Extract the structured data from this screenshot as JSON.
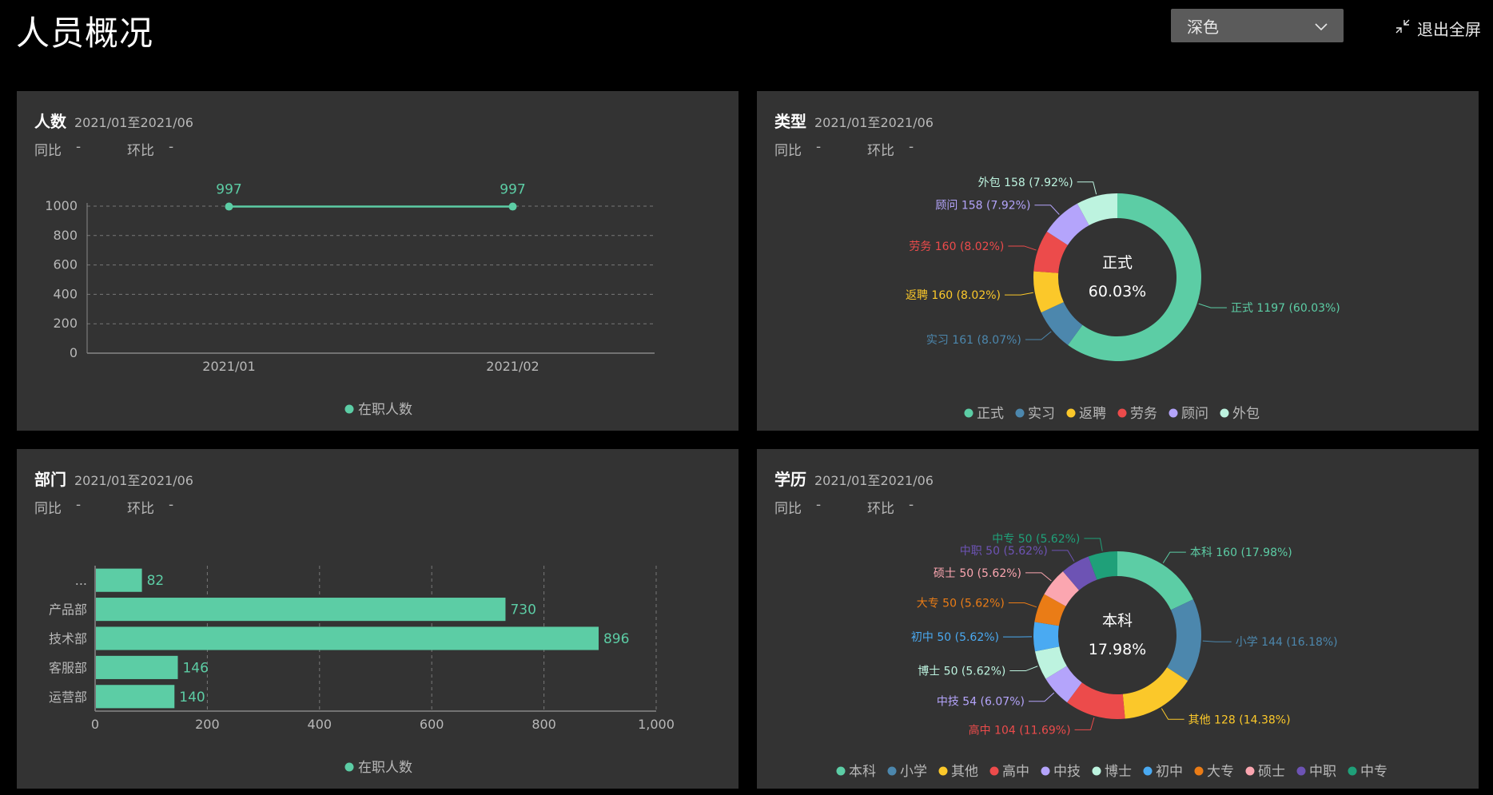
{
  "header": {
    "title": "人员概况",
    "theme_select": "深色",
    "exit_fullscreen": "退出全屏"
  },
  "colors": {
    "accent": "#5ccda5",
    "panel": "#333333",
    "text_muted": "#b8b8b8"
  },
  "panels": {
    "headcount": {
      "title": "人数",
      "date_range": "2021/01至2021/06",
      "yoy_label": "同比",
      "yoy_value": "-",
      "mom_label": "环比",
      "mom_value": "-",
      "legend": "在职人数"
    },
    "type": {
      "title": "类型",
      "date_range": "2021/01至2021/06",
      "yoy_label": "同比",
      "yoy_value": "-",
      "mom_label": "环比",
      "mom_value": "-",
      "center_label": "正式",
      "center_value": "60.03%"
    },
    "department": {
      "title": "部门",
      "date_range": "2021/01至2021/06",
      "yoy_label": "同比",
      "yoy_value": "-",
      "mom_label": "环比",
      "mom_value": "-",
      "legend": "在职人数"
    },
    "education": {
      "title": "学历",
      "date_range": "2021/01至2021/06",
      "yoy_label": "同比",
      "yoy_value": "-",
      "mom_label": "环比",
      "mom_value": "-",
      "center_label": "本科",
      "center_value": "17.98%"
    }
  },
  "chart_data": [
    {
      "type": "line",
      "x": [
        "2021/01",
        "2021/02"
      ],
      "series": [
        {
          "name": "在职人数",
          "values": [
            997,
            997
          ],
          "color": "#5ccda5"
        }
      ],
      "ylim": [
        0,
        1000
      ],
      "yticks": [
        "0",
        "200",
        "400",
        "600",
        "800",
        "1000"
      ],
      "grid": true,
      "legend": "bottom-center"
    },
    {
      "type": "pie",
      "donut": true,
      "slices": [
        {
          "name": "正式",
          "value": 1197,
          "percent": "60.03%",
          "label": "正式 1197 (60.03%)",
          "color": "#5ccda5"
        },
        {
          "name": "实习",
          "value": 161,
          "percent": "8.07%",
          "label": "实习 161 (8.07%)",
          "color": "#4c87ad"
        },
        {
          "name": "返聘",
          "value": 160,
          "percent": "8.02%",
          "label": "返聘 160 (8.02%)",
          "color": "#fbc82a"
        },
        {
          "name": "劳务",
          "value": 160,
          "percent": "8.02%",
          "label": "劳务 160 (8.02%)",
          "color": "#ec4b4b"
        },
        {
          "name": "顾问",
          "value": 158,
          "percent": "7.92%",
          "label": "顾问 158 (7.92%)",
          "color": "#b4a4fb"
        },
        {
          "name": "外包",
          "value": 158,
          "percent": "7.92%",
          "label": "外包 158 (7.92%)",
          "color": "#bdf3df"
        }
      ],
      "legend": "bottom-center"
    },
    {
      "type": "bar",
      "orientation": "horizontal",
      "categories": [
        "运营部",
        "客服部",
        "技术部",
        "产品部",
        "..."
      ],
      "series": [
        {
          "name": "在职人数",
          "values": [
            140,
            146,
            896,
            730,
            82
          ],
          "color": "#5ccda5"
        }
      ],
      "xlim": [
        0,
        1000
      ],
      "xticks": [
        "0",
        "200",
        "400",
        "600",
        "800",
        "1,000"
      ],
      "grid": true,
      "legend": "bottom-center"
    },
    {
      "type": "pie",
      "donut": true,
      "slices": [
        {
          "name": "本科",
          "value": 160,
          "percent": "17.98%",
          "label": "本科 160 (17.98%)",
          "color": "#5ccda5"
        },
        {
          "name": "小学",
          "value": 144,
          "percent": "16.18%",
          "label": "小学 144 (16.18%)",
          "color": "#4c87ad"
        },
        {
          "name": "其他",
          "value": 128,
          "percent": "14.38%",
          "label": "其他 128 (14.38%)",
          "color": "#fbc82a"
        },
        {
          "name": "高中",
          "value": 104,
          "percent": "11.69%",
          "label": "高中 104 (11.69%)",
          "color": "#ec4b4b"
        },
        {
          "name": "中技",
          "value": 54,
          "percent": "6.07%",
          "label": "中技 54 (6.07%)",
          "color": "#b4a4fb"
        },
        {
          "name": "博士",
          "value": 50,
          "percent": "5.62%",
          "label": "博士 50 (5.62%)",
          "color": "#bdf3df"
        },
        {
          "name": "初中",
          "value": 50,
          "percent": "5.62%",
          "label": "初中 50 (5.62%)",
          "color": "#4aaaf2"
        },
        {
          "name": "大专",
          "value": 50,
          "percent": "5.62%",
          "label": "大专 50 (5.62%)",
          "color": "#ea7c16"
        },
        {
          "name": "硕士",
          "value": 50,
          "percent": "5.62%",
          "label": "硕士 50 (5.62%)",
          "color": "#fba6b0"
        },
        {
          "name": "中职",
          "value": 50,
          "percent": "5.62%",
          "label": "中职 50 (5.62%)",
          "color": "#6d53b4"
        },
        {
          "name": "中专",
          "value": 50,
          "percent": "5.62%",
          "label": "中专 50 (5.62%)",
          "color": "#1fa079"
        }
      ],
      "legend": "bottom-center"
    }
  ]
}
